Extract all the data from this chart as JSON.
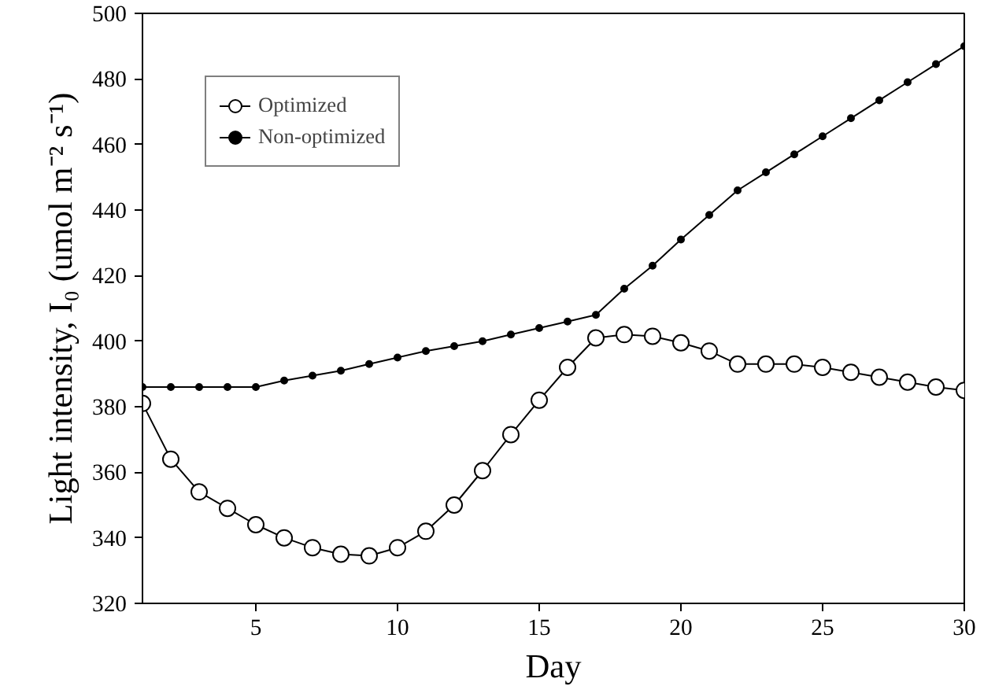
{
  "chart_data": {
    "type": "line",
    "xlabel": "Day",
    "ylabel": "Light intensity, I₀ (umol m⁻² s⁻¹)",
    "x": [
      1,
      2,
      3,
      4,
      5,
      6,
      7,
      8,
      9,
      10,
      11,
      12,
      13,
      14,
      15,
      16,
      17,
      18,
      19,
      20,
      21,
      22,
      23,
      24,
      25,
      26,
      27,
      28,
      29,
      30
    ],
    "series": [
      {
        "name": "Optimized",
        "color": "#000000",
        "marker": "circle",
        "values": [
          381,
          364,
          354,
          349,
          344,
          340,
          337,
          335,
          334.5,
          337,
          342,
          350,
          360.5,
          371.5,
          382,
          392,
          401,
          402,
          401.5,
          399.5,
          397,
          393,
          393,
          393,
          392,
          390.5,
          389,
          387.5,
          386,
          385
        ]
      },
      {
        "name": "Non-optimized",
        "color": "#000000",
        "marker": "dot",
        "values": [
          386,
          386,
          386,
          386,
          386,
          388,
          389.5,
          391,
          393,
          395,
          397,
          398.5,
          400,
          402,
          404,
          406,
          408,
          416,
          423,
          431,
          438.5,
          446,
          451.5,
          457,
          462.5,
          468,
          473.5,
          479,
          484.5,
          490
        ]
      }
    ],
    "xlim": [
      1,
      30
    ],
    "xticks": [
      5,
      10,
      15,
      20,
      25,
      30
    ],
    "ylim": [
      320,
      500
    ],
    "yticks": [
      320,
      340,
      360,
      380,
      400,
      420,
      440,
      460,
      480,
      500
    ],
    "grid": false,
    "legend": "top left",
    "line_style": "solid"
  }
}
